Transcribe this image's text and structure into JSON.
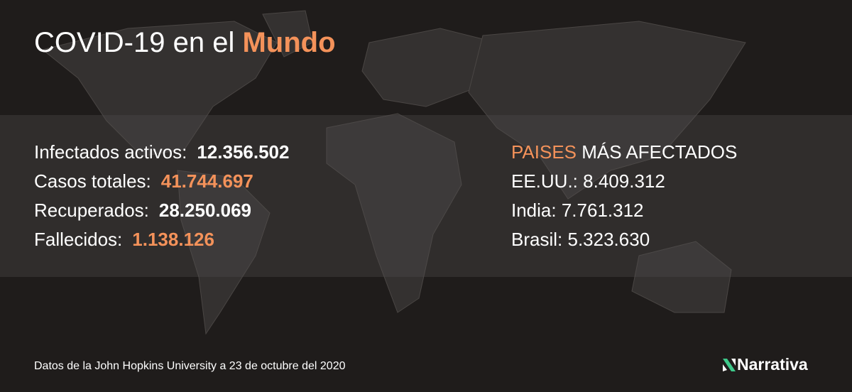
{
  "header": {
    "title": "COVID-19 en el",
    "title_highlight": "Mundo"
  },
  "stats": [
    {
      "label": "Infectados activos:",
      "value": "12.356.502",
      "highlight": false
    },
    {
      "label": "Casos totales:",
      "value": "41.744.697",
      "highlight": true
    },
    {
      "label": "Recuperados:",
      "value": "28.250.069",
      "highlight": false
    },
    {
      "label": "Fallecidos:",
      "value": "1.138.126",
      "highlight": true
    }
  ],
  "countries": {
    "heading_highlight": "PAISES",
    "heading": "MÁS AFECTADOS",
    "rows": [
      {
        "label": "EE.UU.:",
        "value": "8.409.312"
      },
      {
        "label": "India:",
        "value": "7.761.312"
      },
      {
        "label": "Brasil:",
        "value": "5.323.630"
      }
    ]
  },
  "footer": {
    "source": "Datos de la John Hopkins University a 23 de octubre del 2020",
    "brand": "Narrativa"
  }
}
